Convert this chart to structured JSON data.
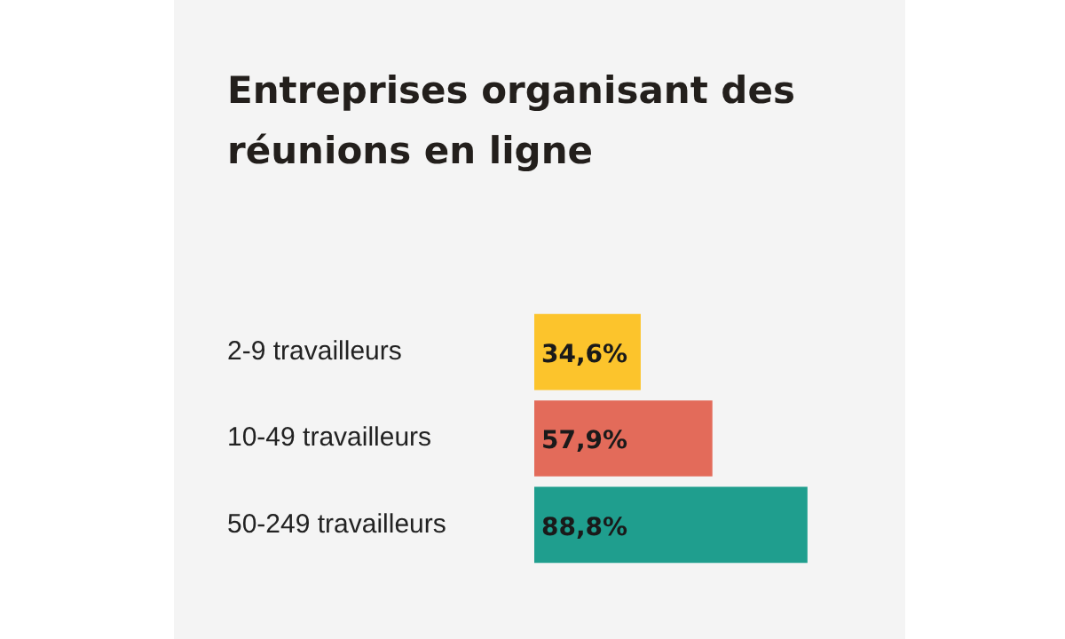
{
  "chart_data": {
    "type": "bar",
    "orientation": "horizontal",
    "title": "Entreprises organisant des réunions en ligne",
    "categories": [
      "2-9 travailleurs",
      "10-49 travailleurs",
      "50-249 travailleurs"
    ],
    "values": [
      34.6,
      57.9,
      88.8
    ],
    "colors": [
      "#fcc42c",
      "#e36b5a",
      "#1f9e8e"
    ],
    "value_labels": [
      "34,6%",
      "57,9%",
      "88,8%"
    ],
    "legend": false
  }
}
